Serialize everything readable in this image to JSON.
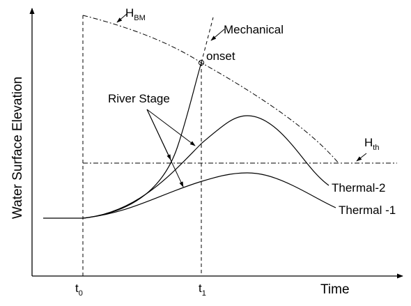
{
  "axes": {
    "y_title": "Water Surface Elevation",
    "x_title": "Time"
  },
  "ticks": {
    "t0": {
      "main": "t",
      "sub": "0"
    },
    "t1": {
      "main": "t",
      "sub": "1"
    }
  },
  "labels": {
    "hbm": {
      "main": "H",
      "sub": "BM"
    },
    "hth": {
      "main": "H",
      "sub": "th"
    },
    "mechanical": "Mechanical",
    "onset": "onset",
    "river_stage": "River Stage",
    "thermal_2": "Thermal-2",
    "thermal_1": "Thermal -1"
  }
}
